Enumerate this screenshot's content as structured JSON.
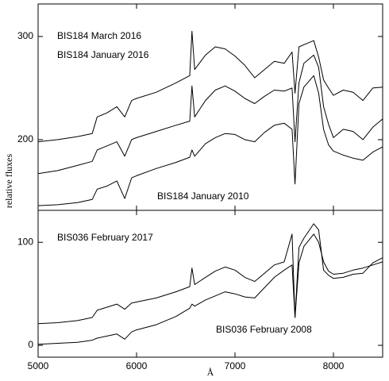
{
  "chart_data": [
    {
      "type": "line",
      "ylabel": "relative fluxes",
      "x": [
        5000,
        5200,
        5400,
        5550,
        5600,
        5700,
        5800,
        5880,
        5950,
        6000,
        6200,
        6400,
        6540,
        6563,
        6590,
        6700,
        6800,
        6900,
        7000,
        7100,
        7200,
        7300,
        7400,
        7500,
        7580,
        7610,
        7650,
        7700,
        7800,
        7850,
        7900,
        7950,
        8000,
        8100,
        8200,
        8300,
        8400,
        8500
      ],
      "xlim": [
        5000,
        8500
      ],
      "ylim": [
        131.5,
        331.5
      ],
      "yticks": [
        200,
        300
      ],
      "series": [
        {
          "name": "BIS184 March 2016",
          "color": "#000000",
          "values": [
            198,
            200,
            203,
            206,
            222,
            226,
            232,
            222,
            238,
            240,
            246,
            255,
            262,
            305,
            268,
            282,
            290,
            288,
            281,
            272,
            260,
            268,
            276,
            274,
            285,
            245,
            290,
            292,
            296,
            280,
            258,
            250,
            243,
            248,
            246,
            238,
            250,
            251
          ]
        },
        {
          "name": "BIS184 January 2016",
          "color": "#000000",
          "values": [
            167,
            170,
            175,
            179,
            190,
            194,
            198,
            184,
            200,
            202,
            208,
            214,
            218,
            252,
            222,
            238,
            248,
            252,
            247,
            240,
            235,
            242,
            248,
            247,
            250,
            198,
            255,
            274,
            282,
            270,
            232,
            215,
            202,
            210,
            208,
            200,
            212,
            220
          ]
        },
        {
          "name": "BIS184 January 2010",
          "color": "#000000",
          "values": [
            136,
            137,
            139,
            142,
            152,
            155,
            160,
            143,
            163,
            165,
            172,
            178,
            183,
            190,
            184,
            196,
            202,
            206,
            205,
            200,
            198,
            207,
            214,
            216,
            210,
            157,
            235,
            251,
            262,
            245,
            210,
            195,
            189,
            185,
            182,
            180,
            188,
            193
          ]
        }
      ]
    },
    {
      "type": "line",
      "xlabel": "Å",
      "x": [
        5000,
        5200,
        5400,
        5550,
        5600,
        5700,
        5800,
        5880,
        5950,
        6000,
        6200,
        6400,
        6540,
        6563,
        6590,
        6700,
        6800,
        6900,
        7000,
        7100,
        7200,
        7300,
        7400,
        7500,
        7580,
        7610,
        7650,
        7700,
        7800,
        7850,
        7900,
        7950,
        8000,
        8100,
        8200,
        8300,
        8400,
        8500
      ],
      "xlim": [
        5000,
        8500
      ],
      "xticks": [
        5000,
        6000,
        7000,
        8000
      ],
      "ylim": [
        -11.5,
        131
      ],
      "yticks": [
        0,
        100
      ],
      "series": [
        {
          "name": "BIS036 February 2017",
          "color": "#000000",
          "values": [
            21,
            22,
            24,
            27,
            34,
            37,
            40,
            35,
            41,
            42,
            46,
            52,
            57,
            75,
            59,
            66,
            72,
            76,
            73,
            66,
            62,
            70,
            78,
            81,
            108,
            27,
            95,
            104,
            118,
            112,
            73,
            68,
            65,
            66,
            69,
            70,
            80,
            85
          ]
        },
        {
          "name": "BIS036 February 2008",
          "color": "#000000",
          "values": [
            1,
            2,
            3,
            5,
            7,
            9,
            11,
            6,
            13,
            15,
            20,
            28,
            36,
            40,
            38,
            44,
            48,
            52,
            50,
            47,
            46,
            56,
            66,
            73,
            78,
            27,
            80,
            96,
            108,
            100,
            81,
            72,
            69,
            70,
            73,
            75,
            78,
            81
          ]
        }
      ]
    }
  ]
}
